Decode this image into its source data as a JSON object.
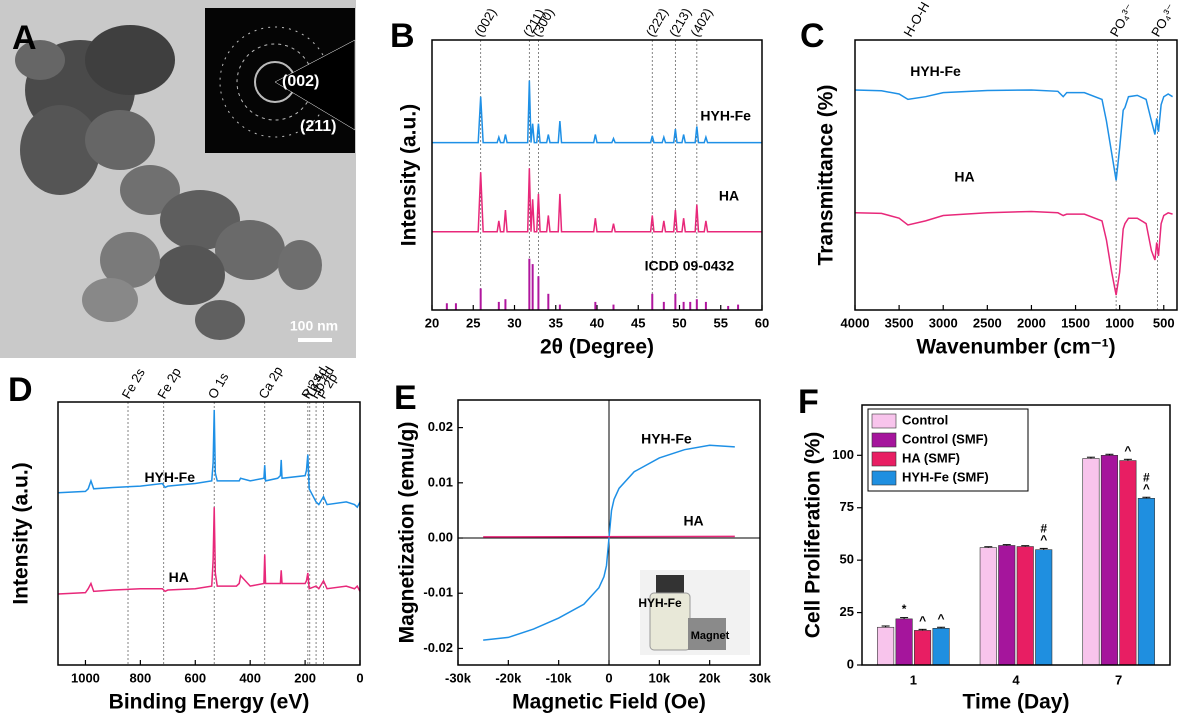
{
  "image_panel": {
    "panel": "A",
    "inset_labels": [
      "(002)",
      "(211)"
    ],
    "scale_bar": "100 nm"
  },
  "chart_data": [
    {
      "type": "line",
      "panel": "B",
      "xlabel": "2θ (Degree)",
      "ylabel": "Intensity (a.u.)",
      "xlim": [
        20,
        60
      ],
      "xticks": [
        20,
        25,
        30,
        35,
        40,
        45,
        50,
        55,
        60
      ],
      "ylim": [
        0,
        100
      ],
      "reference_lines": [
        {
          "x": 25.9,
          "label": "(002)"
        },
        {
          "x": 31.8,
          "label": "(211)"
        },
        {
          "x": 32.9,
          "label": "(300)"
        },
        {
          "x": 46.7,
          "label": "(222)"
        },
        {
          "x": 49.5,
          "label": "(213)"
        },
        {
          "x": 52.1,
          "label": "(402)"
        }
      ],
      "series": [
        {
          "name": "HYH-Fe",
          "color": "#1e90e6",
          "x": [
            20,
            25.6,
            25.9,
            26.2,
            27.9,
            28.1,
            28.3,
            28.7,
            28.9,
            29.1,
            31.6,
            31.8,
            32.0,
            32.2,
            32.4,
            32.7,
            32.9,
            33.1,
            33.9,
            34.1,
            34.3,
            35.3,
            35.5,
            35.7,
            39.6,
            39.8,
            40.0,
            41.8,
            42.0,
            42.2,
            46.5,
            46.7,
            46.9,
            47.9,
            48.1,
            48.3,
            49.3,
            49.5,
            49.7,
            50.3,
            50.5,
            50.7,
            51.9,
            52.1,
            52.3,
            53.0,
            53.2,
            53.4,
            60
          ],
          "values": [
            62,
            62,
            79,
            62,
            62,
            64,
            62,
            62,
            65,
            62,
            62,
            85,
            62,
            69,
            62,
            62,
            69,
            62,
            62,
            65,
            62,
            62,
            70,
            62,
            62,
            65,
            62,
            62,
            63.5,
            62,
            62,
            64.5,
            62,
            62,
            64,
            62,
            62,
            67,
            62,
            62,
            65,
            62,
            62,
            68,
            62,
            62,
            64,
            62,
            62
          ]
        },
        {
          "name": "HA",
          "color": "#e8287a",
          "x": [
            20,
            25.6,
            25.9,
            26.2,
            27.9,
            28.1,
            28.3,
            28.7,
            28.9,
            29.1,
            31.6,
            31.8,
            32.0,
            32.2,
            32.4,
            32.7,
            32.9,
            33.1,
            33.9,
            34.1,
            34.3,
            35.3,
            35.5,
            35.7,
            39.6,
            39.8,
            40.0,
            41.8,
            42.0,
            42.2,
            46.5,
            46.7,
            46.9,
            47.9,
            48.1,
            48.3,
            49.3,
            49.5,
            49.7,
            50.3,
            50.5,
            50.7,
            51.9,
            52.1,
            52.3,
            53.0,
            53.2,
            53.4,
            60
          ],
          "values": [
            29,
            29,
            51,
            29,
            29,
            33,
            29,
            29,
            37,
            29,
            29,
            52.5,
            29,
            41,
            29,
            29,
            43,
            29,
            29,
            35,
            29,
            29,
            43,
            29,
            29,
            34,
            29,
            29,
            32,
            29,
            29,
            35,
            29,
            29,
            33,
            29,
            29,
            37,
            29,
            29,
            34,
            29,
            29,
            39,
            29,
            29,
            33,
            29,
            29
          ]
        },
        {
          "name": "ICDD 09-0432",
          "color": "#b0169e",
          "style": "stick",
          "x": [
            21.8,
            22.9,
            25.9,
            28.1,
            28.9,
            31.8,
            32.2,
            32.9,
            34.1,
            35.5,
            39.8,
            42.0,
            46.7,
            48.1,
            49.5,
            50.5,
            51.3,
            52.1,
            53.2,
            55.9,
            57.1
          ],
          "values": [
            2.5,
            2.5,
            8,
            3,
            4,
            19,
            17,
            12.5,
            6,
            2,
            3,
            2,
            6,
            3,
            6,
            3,
            3,
            4,
            3,
            1.5,
            2
          ]
        }
      ]
    },
    {
      "type": "line",
      "panel": "C",
      "xlabel": "Wavenumber (cm⁻¹)",
      "ylabel": "Transmittance (%)",
      "xlim": [
        4000,
        350
      ],
      "xticks": [
        4000,
        3500,
        3000,
        2500,
        2000,
        1500,
        1000,
        500
      ],
      "ylim": [
        0,
        100
      ],
      "annotations": [
        {
          "x": 3400,
          "text": "H-O-H"
        }
      ],
      "reference_lines": [
        {
          "x": 1040,
          "label": "PO₄³⁻"
        },
        {
          "x": 570,
          "label": "PO₄³⁻"
        }
      ],
      "series": [
        {
          "name": "HYH-Fe",
          "color": "#1e90e6",
          "x": [
            4000,
            3700,
            3500,
            3400,
            3200,
            3000,
            2500,
            2000,
            1700,
            1640,
            1600,
            1400,
            1200,
            1150,
            1090,
            1040,
            1000,
            960,
            940,
            900,
            800,
            700,
            640,
            600,
            580,
            560,
            530,
            500,
            450,
            400
          ],
          "values": [
            81.5,
            81.2,
            80,
            78,
            79,
            80.5,
            81.3,
            81.5,
            81,
            79,
            80.5,
            80.5,
            78,
            70,
            58,
            48,
            60,
            74,
            75,
            79,
            79.5,
            78,
            70,
            65,
            71,
            66,
            76,
            79,
            80,
            79
          ]
        },
        {
          "name": "HA",
          "color": "#e8287a",
          "x": [
            4000,
            3700,
            3500,
            3400,
            3200,
            3000,
            2500,
            2000,
            1700,
            1640,
            1600,
            1400,
            1200,
            1150,
            1090,
            1040,
            1000,
            960,
            940,
            900,
            800,
            700,
            640,
            600,
            580,
            560,
            530,
            500,
            450,
            400
          ],
          "values": [
            36,
            35.8,
            34,
            31.5,
            33,
            35,
            36,
            36.5,
            36,
            35,
            35.5,
            35.5,
            33,
            26,
            14,
            5.5,
            14,
            30,
            32,
            34,
            34,
            32,
            22,
            18.5,
            25,
            20,
            32,
            35,
            36,
            35.5
          ]
        }
      ]
    },
    {
      "type": "line",
      "panel": "D",
      "xlabel": "Binding Energy (eV)",
      "ylabel": "Intensity (a.u.)",
      "xlim": [
        1100,
        0
      ],
      "xticks": [
        1000,
        800,
        600,
        400,
        200,
        0
      ],
      "ylim": [
        0,
        100
      ],
      "reference_lines": [
        {
          "x": 845,
          "label": "Fe 2s"
        },
        {
          "x": 715,
          "label": "Fe 2p"
        },
        {
          "x": 531,
          "label": "O 1s"
        },
        {
          "x": 347,
          "label": "Ca 2p"
        },
        {
          "x": 190,
          "label": "P 2s"
        },
        {
          "x": 183,
          "label": "Yb 4d"
        },
        {
          "x": 160,
          "label": "Ho 4d"
        },
        {
          "x": 133,
          "label": "P 2p"
        }
      ],
      "series": [
        {
          "name": "HYH-Fe",
          "color": "#1e90e6",
          "x": [
            1100,
            1000,
            990,
            980,
            970,
            900,
            800,
            720,
            710,
            700,
            600,
            540,
            535,
            531,
            527,
            520,
            450,
            440,
            435,
            400,
            350,
            347,
            344,
            300,
            290,
            287,
            284,
            200,
            195,
            190,
            185,
            160,
            150,
            133,
            120,
            50,
            20,
            10,
            0
          ],
          "values": [
            65.5,
            66,
            67,
            70,
            67,
            67.5,
            68,
            69,
            67.5,
            68,
            69,
            70,
            77,
            97,
            73,
            70,
            70,
            70,
            71,
            70,
            71,
            76,
            70,
            71,
            72,
            78,
            71,
            72,
            74,
            80,
            67,
            62,
            61,
            64,
            61,
            62,
            61,
            60,
            62
          ]
        },
        {
          "name": "HA",
          "color": "#e8287a",
          "x": [
            1100,
            1000,
            990,
            980,
            970,
            900,
            800,
            720,
            710,
            700,
            600,
            540,
            535,
            531,
            527,
            520,
            450,
            440,
            435,
            400,
            350,
            347,
            344,
            300,
            290,
            287,
            284,
            200,
            195,
            190,
            185,
            160,
            150,
            133,
            120,
            50,
            20,
            10,
            0
          ],
          "values": [
            27,
            27.5,
            29,
            31,
            28,
            28.5,
            29,
            29,
            28,
            28.5,
            29,
            30,
            40,
            60,
            35,
            30,
            30,
            31,
            34,
            30,
            31,
            42,
            31,
            31,
            31,
            36,
            31,
            31,
            32,
            35,
            29,
            30,
            29,
            32,
            29,
            30,
            29,
            30,
            28
          ]
        }
      ]
    },
    {
      "type": "line",
      "panel": "E",
      "xlabel": "Magnetic Field (Oe)",
      "ylabel": "Magnetization (emu/g)",
      "xlim": [
        -30000,
        30000
      ],
      "xticks": [
        {
          "value": -30000,
          "label": "-30k"
        },
        {
          "value": -20000,
          "label": "-20k"
        },
        {
          "value": -10000,
          "label": "-10k"
        },
        0,
        {
          "value": 10000,
          "label": "10k"
        },
        {
          "value": 20000,
          "label": "20k"
        },
        {
          "value": 30000,
          "label": "30k"
        }
      ],
      "ylim": [
        -0.023,
        0.025
      ],
      "yticks": [
        -0.02,
        -0.01,
        {
          "value": 0,
          "label": "0.00"
        },
        0.01,
        0.02
      ],
      "zero_lines": true,
      "inset_labels": [
        "HYH-Fe",
        "Magnet"
      ],
      "series": [
        {
          "name": "HYH-Fe",
          "color": "#1e90e6",
          "x": [
            -25000,
            -20000,
            -15000,
            -10000,
            -5000,
            -2000,
            -1000,
            -500,
            0,
            500,
            1000,
            2000,
            5000,
            10000,
            15000,
            20000,
            25000
          ],
          "values": [
            -0.0185,
            -0.018,
            -0.0165,
            -0.0145,
            -0.012,
            -0.009,
            -0.007,
            -0.005,
            0,
            0.005,
            0.007,
            0.009,
            0.012,
            0.0145,
            0.016,
            0.0168,
            0.0165
          ]
        },
        {
          "name": "HA",
          "color": "#e8287a",
          "x": [
            -25000,
            25000
          ],
          "values": [
            0.0002,
            0.0003
          ]
        }
      ]
    },
    {
      "type": "bar",
      "panel": "F",
      "xlabel": "Time (Day)",
      "ylabel": "Cell Proliferation (%)",
      "categories": [
        "1",
        "4",
        "7"
      ],
      "ylim": [
        0,
        124
      ],
      "yticks": [
        0,
        25,
        50,
        75,
        100
      ],
      "legend": "top-left",
      "series": [
        {
          "name": "Control",
          "color": "#f8c4ec",
          "values": [
            18,
            56,
            98.5
          ],
          "errors": [
            0.6,
            0.4,
            0.6
          ]
        },
        {
          "name": "Control (SMF)",
          "color": "#a5159c",
          "values": [
            22,
            57,
            100
          ],
          "errors": [
            0.6,
            0.4,
            0.5
          ],
          "significance": [
            [
              "*"
            ],
            null,
            null
          ]
        },
        {
          "name": "HA (SMF)",
          "color": "#e81e63",
          "values": [
            16.5,
            56.5,
            97.5
          ],
          "errors": [
            0.5,
            0.4,
            0.6
          ],
          "significance": [
            [
              "^"
            ],
            null,
            [
              "^"
            ]
          ]
        },
        {
          "name": "HYH-Fe (SMF)",
          "color": "#1f8fe0",
          "values": [
            17.5,
            55,
            79.5
          ],
          "errors": [
            0.5,
            0.6,
            0.5
          ],
          "significance": [
            [
              "^"
            ],
            [
              "#",
              "^"
            ],
            [
              "#",
              "^"
            ]
          ]
        }
      ]
    }
  ]
}
